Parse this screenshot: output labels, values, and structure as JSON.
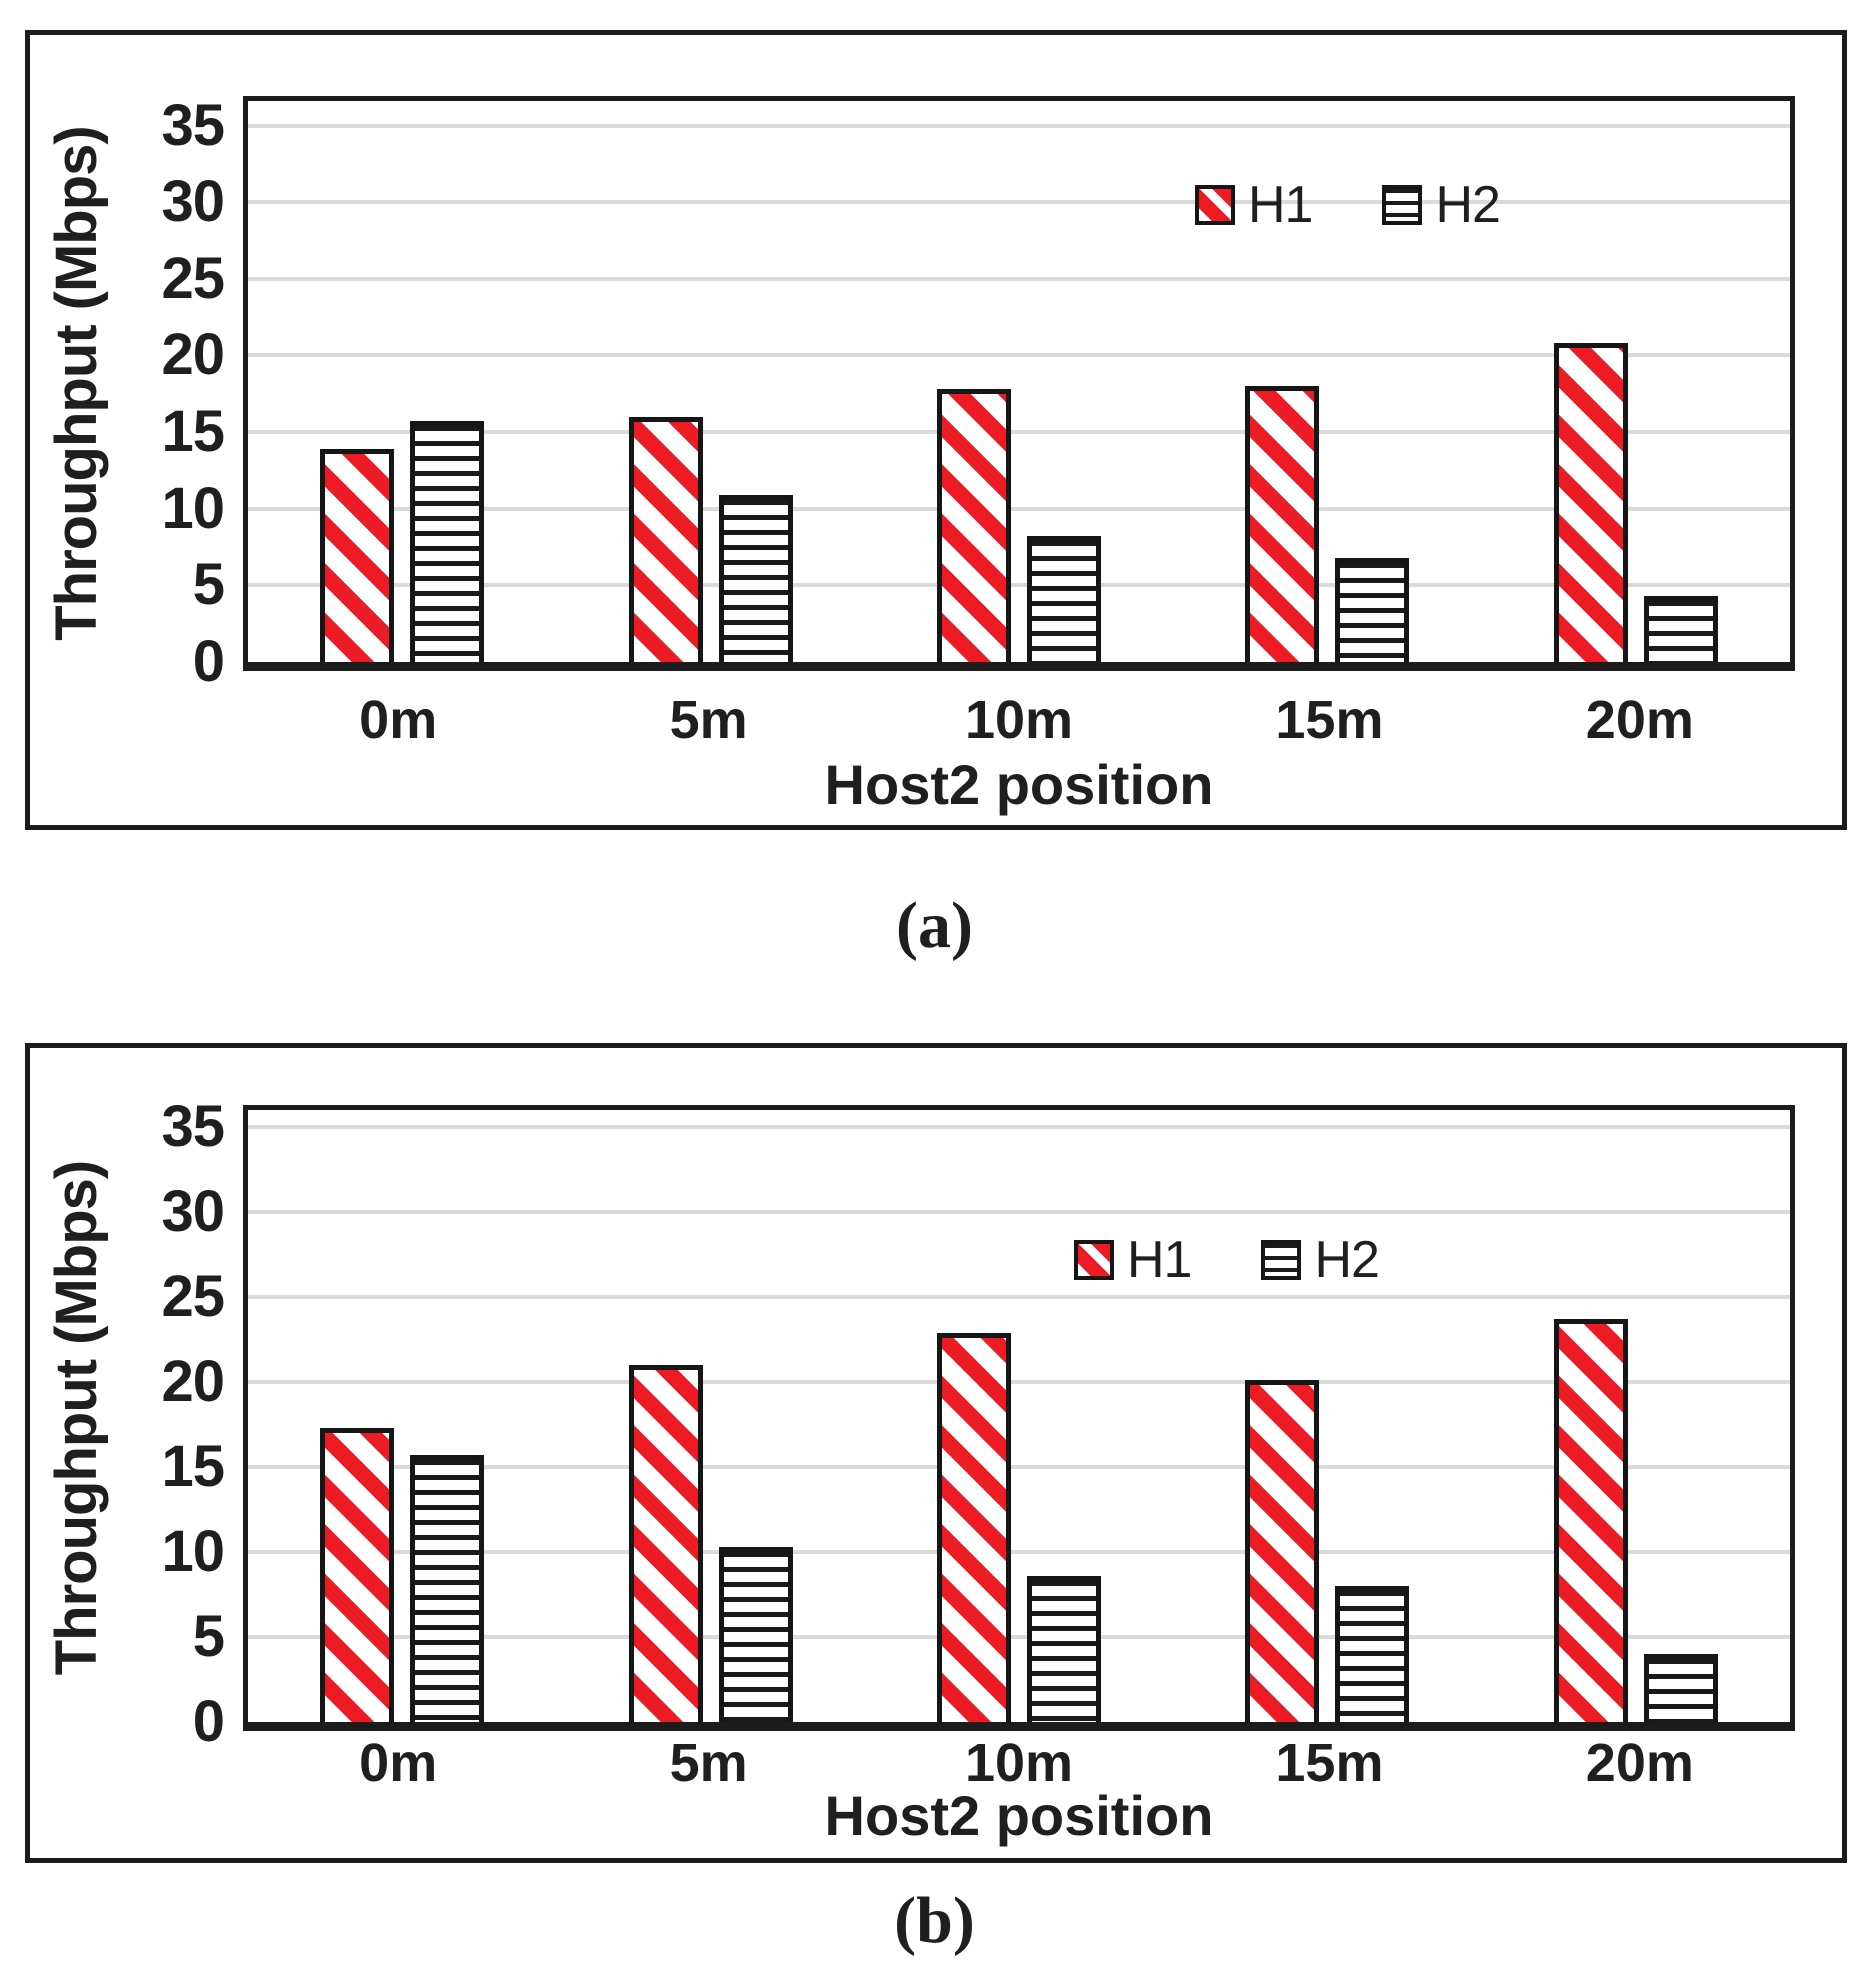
{
  "figure": {
    "caption_a": "(a)",
    "caption_b": "(b)"
  },
  "colors": {
    "h1_stripe_red": "#ED1C24",
    "bar_border": "#161616",
    "gridline_gray": "#DADADA",
    "text": "#1F1F1F"
  },
  "chart_data": [
    {
      "type": "bar",
      "caption": "(a)",
      "categories": [
        "0m",
        "5m",
        "10m",
        "15m",
        "20m"
      ],
      "series": [
        {
          "name": "H1",
          "pattern": "red-diagonal-hatch",
          "values": [
            13.9,
            16.0,
            17.8,
            18.0,
            20.8
          ]
        },
        {
          "name": "H2",
          "pattern": "black-horizontal-hatch",
          "values": [
            15.7,
            10.9,
            8.2,
            6.8,
            4.3
          ]
        }
      ],
      "xlabel": "Host2 position",
      "ylabel": "Throughput (Mbps)",
      "ylim": [
        0,
        35
      ],
      "yticks": [
        0,
        5,
        10,
        15,
        20,
        25,
        30,
        35
      ],
      "grid": true,
      "legend_position": "inside-top-right"
    },
    {
      "type": "bar",
      "caption": "(b)",
      "categories": [
        "0m",
        "5m",
        "10m",
        "15m",
        "20m"
      ],
      "series": [
        {
          "name": "H1",
          "pattern": "red-diagonal-hatch",
          "values": [
            17.3,
            21.0,
            22.9,
            20.1,
            23.7
          ]
        },
        {
          "name": "H2",
          "pattern": "black-horizontal-hatch",
          "values": [
            15.7,
            10.3,
            8.6,
            8.0,
            4.0
          ]
        }
      ],
      "xlabel": "Host2 position",
      "ylabel": "Throughput (Mbps)",
      "ylim": [
        0,
        35
      ],
      "yticks": [
        0,
        5,
        10,
        15,
        20,
        25,
        30,
        35
      ],
      "grid": true,
      "legend_position": "inside-top-right"
    }
  ]
}
